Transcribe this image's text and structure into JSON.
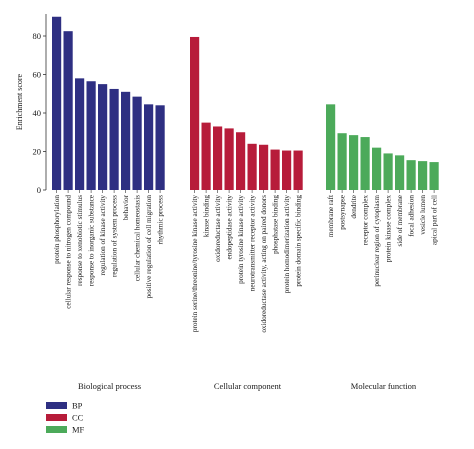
{
  "chart_data": {
    "type": "bar",
    "title": "",
    "ylabel": "Enrichment score",
    "xlabel": "",
    "ylim": [
      0,
      90
    ],
    "yticks": [
      0,
      20,
      40,
      60,
      80
    ],
    "grid": false,
    "legend_position": "bottom-left",
    "groups": [
      {
        "key": "BP",
        "name": "Biological process",
        "color": "#2e2f82",
        "categories": [
          "protein phosphorylation",
          "cellular response to nitrogen compound",
          "response to xenobiotic stimulus",
          "response to inorganic substance",
          "regulation of kinase activity",
          "regulation of system process",
          "behavior",
          "cellular chemical homeostasis",
          "positive regulation of cell migration",
          "rhythmic process"
        ],
        "values": [
          90,
          82.5,
          58,
          56.5,
          55,
          52.5,
          51,
          48.5,
          44.5,
          44
        ]
      },
      {
        "key": "CC",
        "name": "Cellular component",
        "color": "#b71c3a",
        "categories": [
          "protein serine/threonine/tyrosine kinase activity",
          "kinase binding",
          "oxidoreductase activity",
          "endopeptidase activity",
          "protein tyrosine kinase activity",
          "neurotransmitter receptor activity",
          "oxidoreductase activity, acting on paired donors",
          "phosphatase binding",
          "protein homodimerization activity",
          "protein domain specific binding"
        ],
        "values": [
          79.5,
          35,
          33,
          32,
          30,
          24,
          23.5,
          21,
          20.5,
          20.5
        ]
      },
      {
        "key": "MF",
        "name": "Molecular function",
        "color": "#4caa5a",
        "categories": [
          "membrane raft",
          "postsynapse",
          "dendrite",
          "receptor complex",
          "perinuclear region of cytoplasm",
          "protein kinase complex",
          "side of membrane",
          "focal adhesion",
          "vesicle lumen",
          "apical part of cell"
        ],
        "values": [
          44.5,
          29.5,
          28.5,
          27.5,
          22,
          19,
          18,
          15.5,
          15,
          14.5
        ]
      }
    ],
    "legend": [
      {
        "label": "BP",
        "color": "#2e2f82"
      },
      {
        "label": "CC",
        "color": "#b71c3a"
      },
      {
        "label": "MF",
        "color": "#4caa5a"
      }
    ]
  }
}
